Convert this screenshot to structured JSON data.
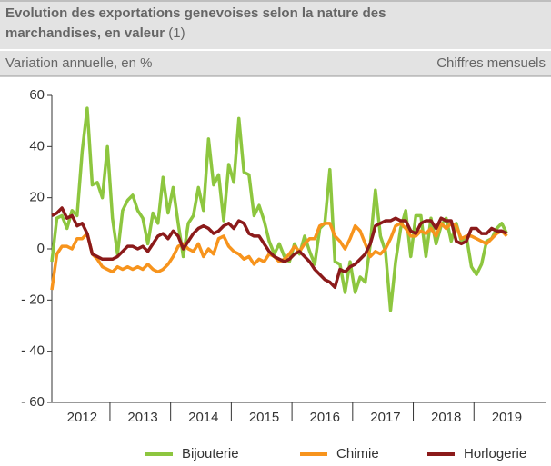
{
  "chart_data": {
    "type": "line",
    "title_lines": [
      "Evolution des exportations genevoises selon la nature des",
      "marchandises, en valeur"
    ],
    "title_note": "(1)",
    "subtitle": "Variation annuelle, en %",
    "subtitle_right": "Chiffres mensuels",
    "categories": [
      null,
      null,
      null,
      null,
      null,
      null,
      "2012",
      null,
      null,
      null,
      null,
      null,
      null,
      null,
      null,
      null,
      null,
      null,
      "2013",
      null,
      null,
      null,
      null,
      null,
      null,
      null,
      null,
      null,
      null,
      null,
      "2014",
      null,
      null,
      null,
      null,
      null,
      null,
      null,
      null,
      null,
      null,
      null,
      "2015",
      null,
      null,
      null,
      null,
      null,
      null,
      null,
      null,
      null,
      null,
      null,
      "2016",
      null,
      null,
      null,
      null,
      null,
      null,
      null,
      null,
      null,
      null,
      null,
      "2017",
      null,
      null,
      null,
      null,
      null,
      null,
      null,
      null,
      null,
      null,
      null,
      "2018",
      null,
      null,
      null,
      null,
      null,
      null,
      null,
      null,
      null,
      null,
      null,
      "2019"
    ],
    "ylim": [
      -60,
      60
    ],
    "yticks": [
      {
        "value": -60,
        "label": "- 60"
      },
      {
        "value": -40,
        "label": "- 40"
      },
      {
        "value": -20,
        "label": "- 20"
      },
      0,
      20,
      40,
      60
    ],
    "grid": false,
    "legend": "bottom",
    "series": [
      {
        "name": "Bijouterie",
        "color": "#8dc63f",
        "values": [
          -5,
          12,
          13,
          8,
          15,
          13,
          38,
          55,
          25,
          26,
          20,
          40,
          12,
          -2,
          15,
          19,
          21,
          15,
          12,
          2,
          14,
          10,
          28,
          14,
          24,
          10,
          -3,
          10,
          13,
          24,
          15,
          43,
          25,
          29,
          11,
          33,
          26,
          51,
          30,
          29,
          13,
          17,
          11,
          3,
          -2,
          2,
          -3,
          -5,
          2,
          -2,
          5,
          -1,
          -6,
          8,
          10,
          31,
          -5,
          -6,
          -17,
          -5,
          -17,
          -11,
          -13,
          2,
          23,
          5,
          -1,
          -24,
          -5,
          8,
          15,
          -3,
          13,
          13,
          -3,
          12,
          2,
          9,
          12,
          3,
          10,
          3,
          5,
          -7,
          -10,
          -6,
          3,
          4,
          8,
          10,
          6
        ]
      },
      {
        "name": "Chimie",
        "color": "#f7941d",
        "values": [
          -16,
          -2,
          1,
          1,
          0,
          4,
          4,
          6,
          -2,
          -4,
          -7,
          -8,
          -9,
          -7,
          -8,
          -7,
          -8,
          -7,
          -8,
          -6,
          -8,
          -9,
          -8,
          -6,
          -3,
          1,
          2,
          0,
          -1,
          2,
          -3,
          0,
          -2,
          4,
          5,
          1,
          -1,
          -2,
          -4,
          -3,
          -6,
          -4,
          -5,
          -2,
          -3,
          -5,
          -4,
          -2,
          1,
          -1,
          2,
          4,
          4,
          9,
          10,
          10,
          5,
          3,
          0,
          4,
          9,
          7,
          2,
          -3,
          -1,
          -2,
          0,
          4,
          9,
          10,
          8,
          5,
          5,
          7,
          6,
          8,
          5,
          10,
          8,
          10,
          9,
          4,
          5,
          5,
          4,
          3,
          2,
          4,
          6,
          7,
          5
        ]
      },
      {
        "name": "Horlogerie",
        "color": "#8b1a1a",
        "values": [
          13,
          14,
          16,
          12,
          13,
          9,
          10,
          6,
          -2,
          -3,
          -4,
          -4,
          -4,
          -3,
          -1,
          1,
          1,
          0,
          1,
          -1,
          2,
          5,
          6,
          4,
          7,
          5,
          0,
          3,
          6,
          8,
          9,
          8,
          6,
          7,
          9,
          10,
          8,
          11,
          10,
          6,
          5,
          5,
          2,
          -1,
          -3,
          -4,
          -5,
          -4,
          -2,
          -1,
          -3,
          -5,
          -8,
          -10,
          -12,
          -13,
          -15,
          -8,
          -9,
          -7,
          -6,
          -4,
          -2,
          2,
          9,
          10,
          11,
          11,
          12,
          11,
          11,
          7,
          6,
          10,
          11,
          11,
          8,
          12,
          11,
          11,
          3,
          2,
          3,
          8,
          8,
          6,
          6,
          8,
          7,
          7,
          6
        ]
      }
    ]
  }
}
